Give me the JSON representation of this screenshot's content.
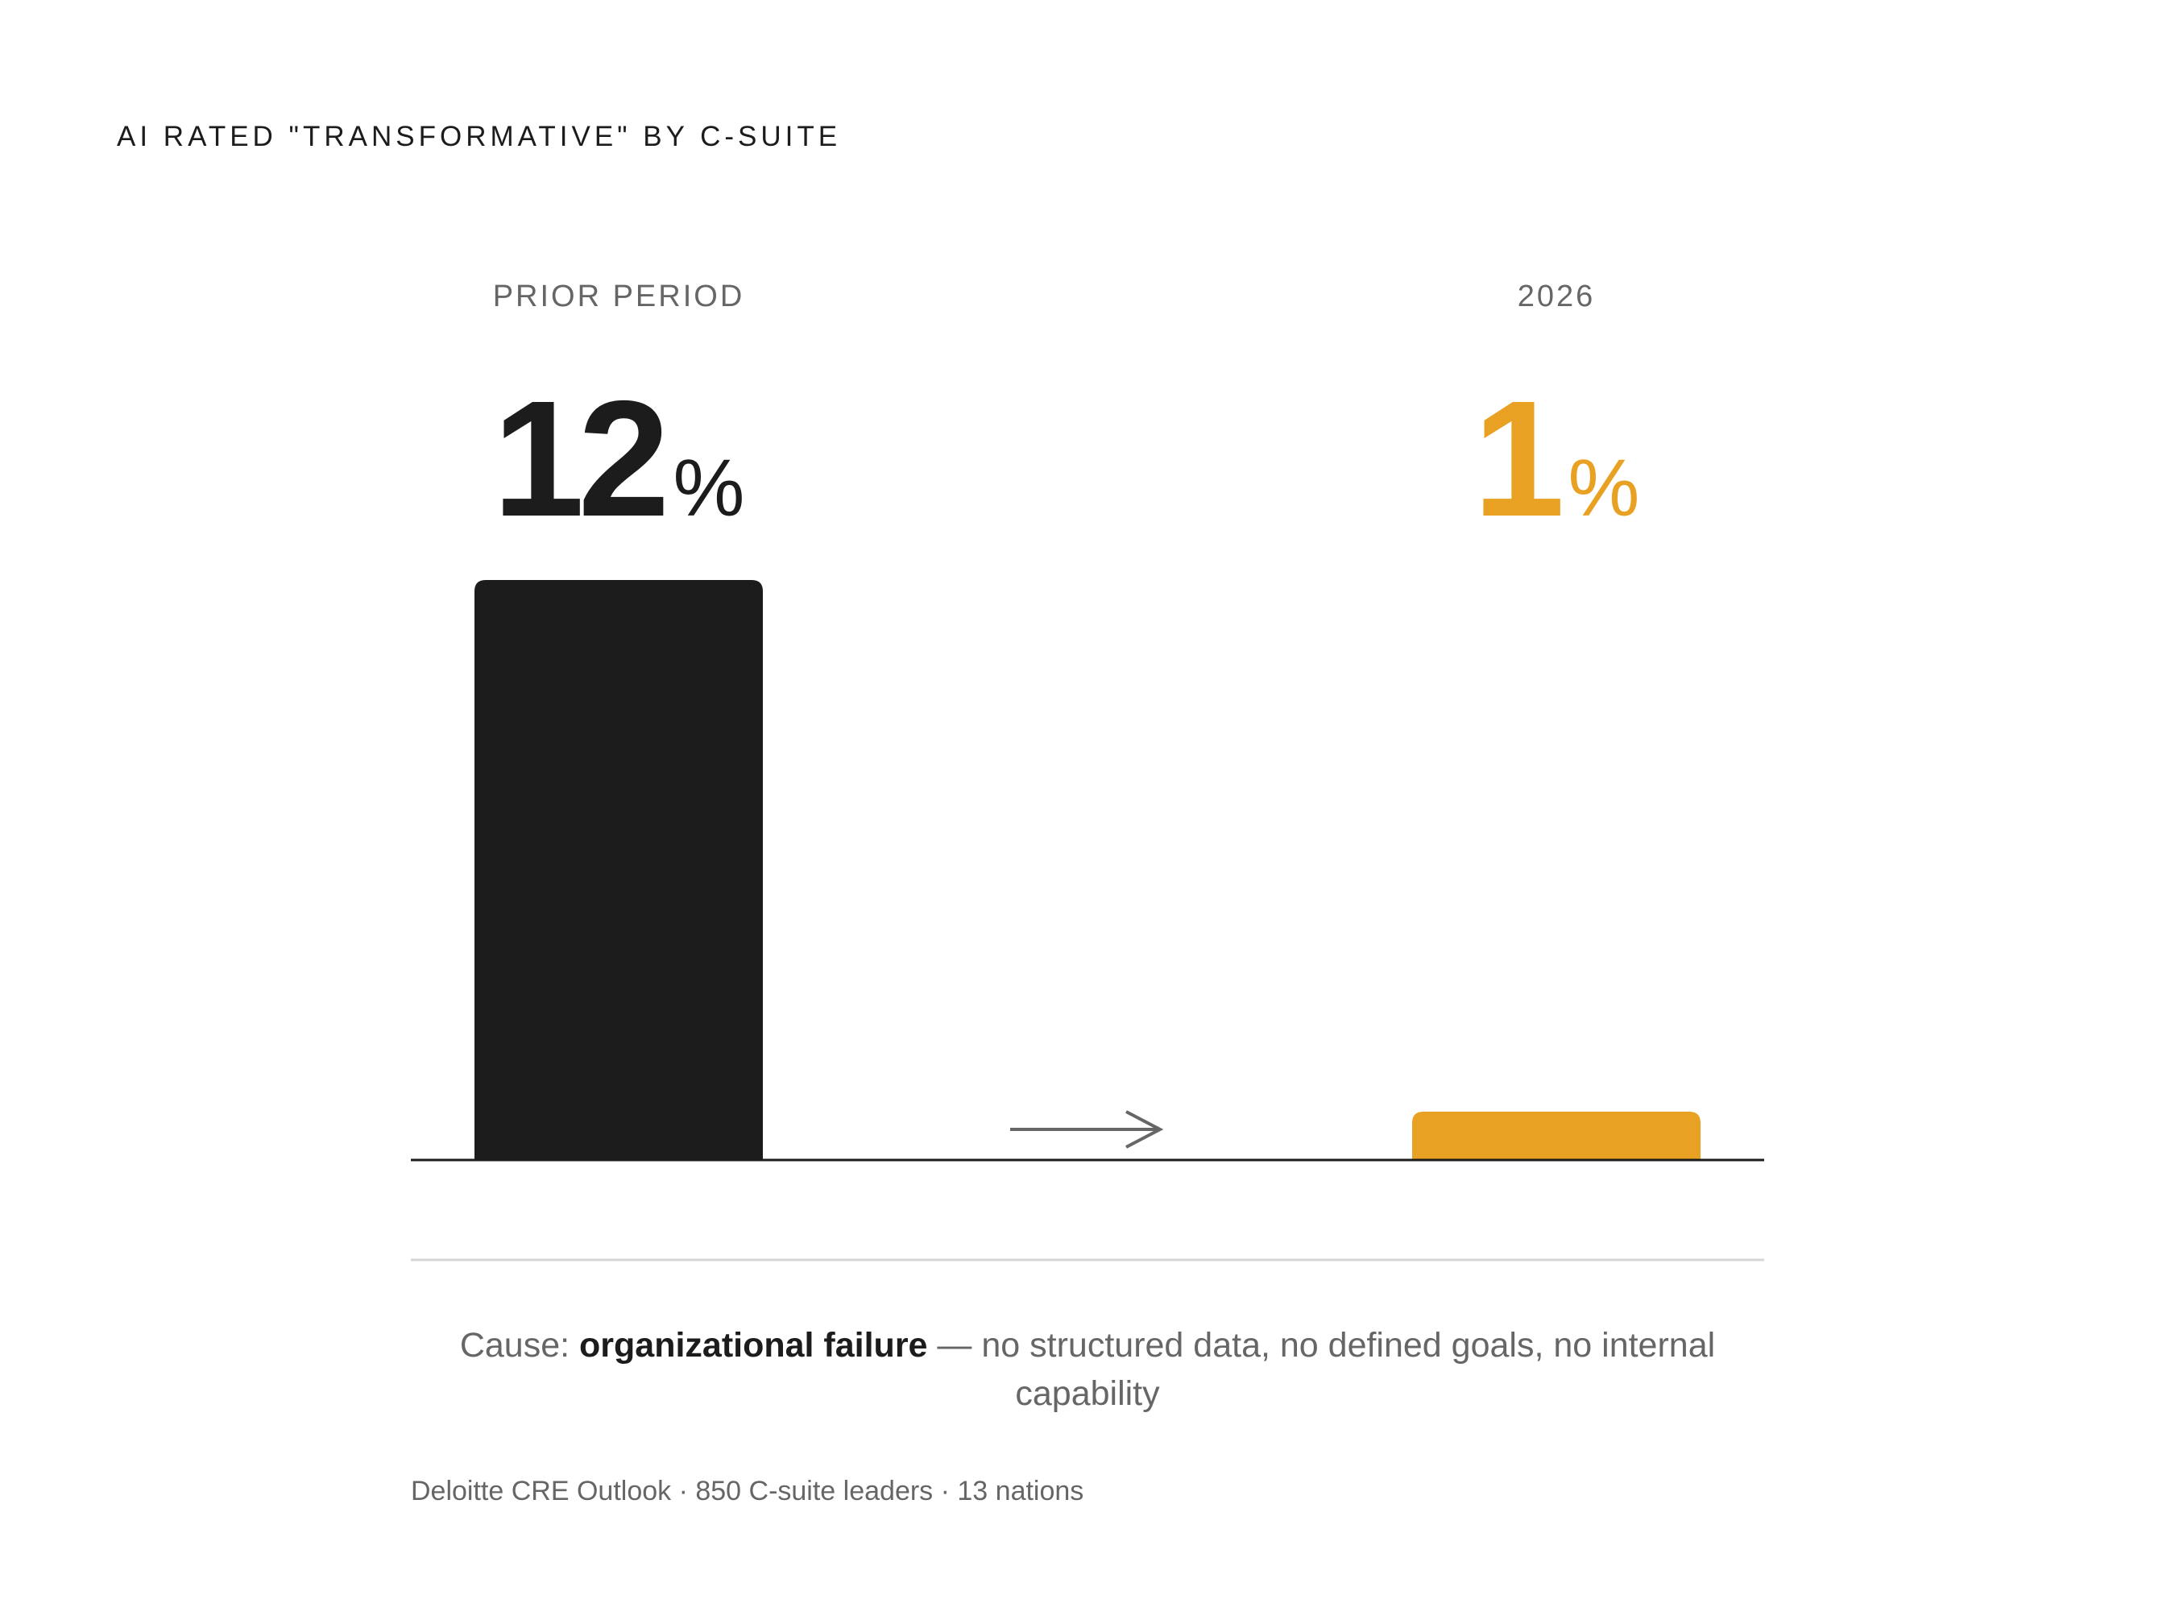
{
  "chart_data": {
    "type": "bar",
    "title": "AI RATED \"TRANSFORMATIVE\" BY C-SUITE",
    "categories": [
      "PRIOR PERIOD",
      "2026"
    ],
    "values": [
      12,
      1
    ],
    "value_labels": [
      "12%",
      "1%"
    ],
    "colors": [
      "#1c1c1c",
      "#e8a122"
    ],
    "ylim": [
      0,
      12
    ],
    "grid": false,
    "caption": {
      "prefix": "Cause: ",
      "emphasis": "organizational failure",
      "rest": " — no structured data, no defined goals, no internal capability"
    },
    "source": "Deloitte CRE Outlook · 850 C-suite leaders · 13 nations"
  }
}
